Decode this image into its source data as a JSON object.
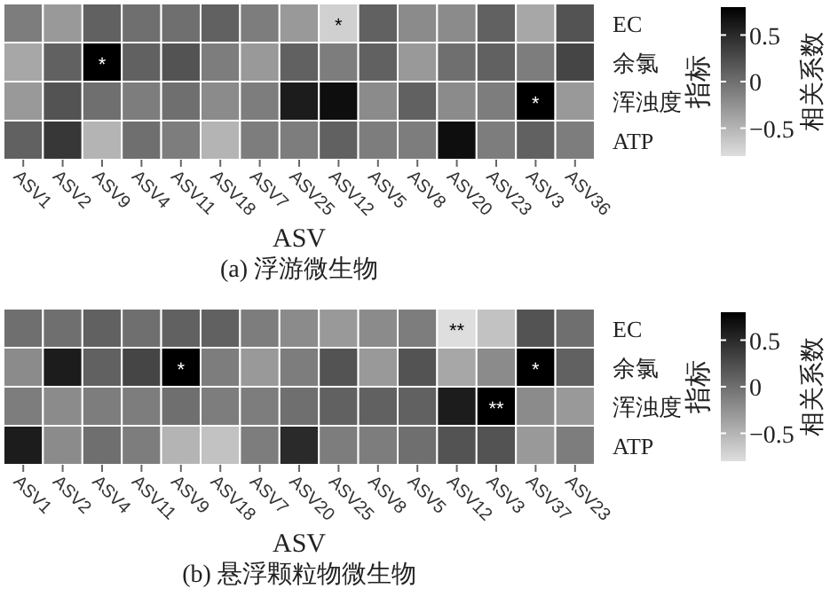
{
  "chart_data": [
    {
      "type": "heatmap",
      "title": "(a) 浮游微生物",
      "xlabel": "ASV",
      "ylabel": "指标",
      "clabel": "相关系数",
      "categories": [
        "ASV1",
        "ASV2",
        "ASV9",
        "ASV4",
        "ASV11",
        "ASV18",
        "ASV7",
        "ASV25",
        "ASV12",
        "ASV5",
        "ASV8",
        "ASV20",
        "ASV23",
        "ASV3",
        "ASV36"
      ],
      "y_categories": [
        "EC",
        "余氯",
        "浑浊度",
        "ATP"
      ],
      "cells": [
        [
          -0.1,
          -0.3,
          0.1,
          0.0,
          0.0,
          0.1,
          -0.1,
          -0.3,
          -0.7,
          0.1,
          -0.2,
          -0.2,
          0.1,
          -0.4,
          0.2
        ],
        [
          -0.4,
          0.1,
          0.8,
          0.1,
          0.2,
          -0.1,
          -0.3,
          0.1,
          -0.1,
          0.1,
          -0.3,
          0.0,
          0.1,
          -0.1,
          0.3
        ],
        [
          -0.3,
          0.2,
          0.0,
          -0.1,
          0.0,
          -0.2,
          -0.1,
          0.6,
          0.7,
          -0.2,
          0.1,
          -0.2,
          -0.1,
          0.8,
          -0.3
        ],
        [
          0.1,
          0.4,
          -0.5,
          0.0,
          -0.1,
          -0.5,
          -0.1,
          -0.1,
          0.1,
          -0.1,
          -0.1,
          0.7,
          -0.1,
          0.1,
          -0.1
        ]
      ],
      "cell_labels": [
        [
          null,
          null,
          null,
          null,
          null,
          null,
          null,
          null,
          "*",
          null,
          null,
          null,
          null,
          null,
          null
        ],
        [
          null,
          null,
          "*",
          null,
          null,
          null,
          null,
          null,
          null,
          null,
          null,
          null,
          null,
          null,
          null
        ],
        [
          null,
          null,
          null,
          null,
          null,
          null,
          null,
          null,
          null,
          null,
          null,
          null,
          null,
          "*",
          null
        ],
        [
          null,
          null,
          null,
          null,
          null,
          null,
          null,
          null,
          null,
          null,
          null,
          null,
          null,
          null,
          null
        ]
      ],
      "clim": [
        -0.8,
        0.8
      ],
      "cticks": [
        -0.5,
        0,
        0.5
      ]
    },
    {
      "type": "heatmap",
      "title": "(b) 悬浮颗粒物微生物",
      "xlabel": "ASV",
      "ylabel": "指标",
      "clabel": "相关系数",
      "categories": [
        "ASV1",
        "ASV2",
        "ASV4",
        "ASV11",
        "ASV9",
        "ASV18",
        "ASV7",
        "ASV20",
        "ASV25",
        "ASV8",
        "ASV5",
        "ASV12",
        "ASV3",
        "ASV37",
        "ASV23"
      ],
      "y_categories": [
        "EC",
        "余氯",
        "浑浊度",
        "ATP"
      ],
      "cells": [
        [
          0.0,
          0.0,
          0.1,
          0.0,
          0.1,
          0.1,
          -0.1,
          -0.2,
          -0.3,
          -0.2,
          -0.1,
          -0.8,
          -0.6,
          0.2,
          0.0
        ],
        [
          -0.2,
          0.6,
          0.1,
          0.3,
          0.8,
          -0.1,
          -0.3,
          -0.1,
          0.2,
          -0.3,
          0.2,
          -0.4,
          -0.2,
          0.8,
          0.1
        ],
        [
          -0.1,
          -0.2,
          -0.1,
          -0.1,
          0.0,
          -0.1,
          -0.1,
          0.0,
          0.1,
          0.1,
          0.1,
          0.6,
          0.8,
          -0.2,
          -0.3
        ],
        [
          0.6,
          -0.2,
          0.0,
          -0.1,
          -0.5,
          -0.6,
          -0.1,
          0.5,
          -0.1,
          -0.1,
          0.0,
          0.2,
          0.2,
          -0.3,
          -0.1
        ]
      ],
      "cell_labels": [
        [
          null,
          null,
          null,
          null,
          null,
          null,
          null,
          null,
          null,
          null,
          null,
          "**",
          null,
          null,
          null
        ],
        [
          null,
          null,
          null,
          null,
          "*",
          null,
          null,
          null,
          null,
          null,
          null,
          null,
          null,
          "*",
          null
        ],
        [
          null,
          null,
          null,
          null,
          null,
          null,
          null,
          null,
          null,
          null,
          null,
          null,
          "**",
          null,
          null
        ],
        [
          null,
          null,
          null,
          null,
          null,
          null,
          null,
          null,
          null,
          null,
          null,
          null,
          null,
          null,
          null
        ]
      ],
      "clim": [
        -0.8,
        0.8
      ],
      "cticks": [
        -0.5,
        0,
        0.5
      ]
    }
  ]
}
